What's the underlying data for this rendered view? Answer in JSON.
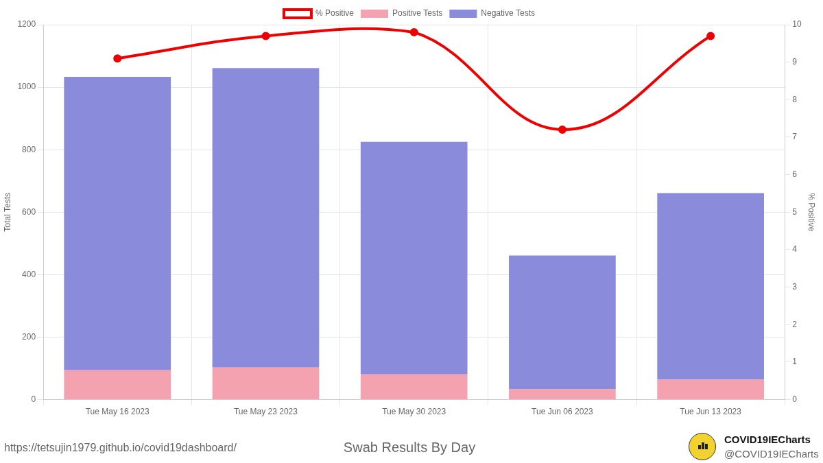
{
  "chart_data": {
    "type": "bar",
    "title": "Swab Results By Day",
    "categories": [
      "Tue May 16 2023",
      "Tue May 23 2023",
      "Tue May 30 2023",
      "Tue Jun 06 2023",
      "Tue Jun 13 2023"
    ],
    "series": [
      {
        "name": "% Positive",
        "type": "line",
        "color": "#ee0000",
        "axis": "y2",
        "marker": "circle",
        "values": [
          9.1,
          9.7,
          9.8,
          7.2,
          9.7
        ]
      },
      {
        "name": "Positive Tests",
        "type": "bar",
        "color": "#f4a1b0",
        "values": [
          94,
          103,
          81,
          33,
          64
        ]
      },
      {
        "name": "Negative Tests",
        "type": "bar",
        "color": "#8a8bdb",
        "values": [
          939,
          958,
          744,
          428,
          597
        ]
      }
    ],
    "y_label": "Total Tests",
    "y2_label": "% Positive",
    "ylim": [
      0,
      1200
    ],
    "yticks": [
      0,
      200,
      400,
      600,
      800,
      1000,
      1200
    ],
    "y2lim": [
      0,
      10
    ],
    "y2ticks": [
      0,
      1,
      2,
      3,
      4,
      5,
      6,
      7,
      8,
      9,
      10
    ],
    "stacked": true,
    "grid": true,
    "legend": "top"
  },
  "footer": {
    "url": "https://tetsujin1979.github.io/covid19dashboard/",
    "credit": "COVID19IECharts",
    "handle": "@COVID19IECharts"
  }
}
